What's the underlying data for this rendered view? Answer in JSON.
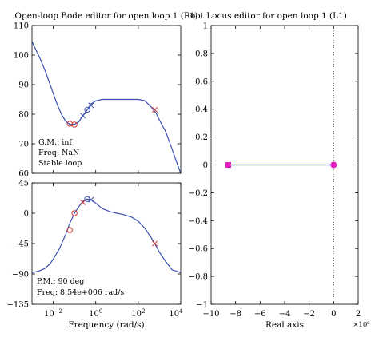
{
  "chart_data": [
    {
      "type": "line",
      "title": "Open-loop Bode editor for open loop 1 (L1)",
      "panel": "magnitude",
      "x_scale": "log",
      "xlim": [
        0.001,
        10000
      ],
      "ylim": [
        60,
        110
      ],
      "yticks": [
        60,
        70,
        80,
        90,
        100,
        110
      ],
      "ytick_labels": [
        "60",
        "70",
        "80",
        "90",
        "100",
        "110"
      ],
      "curve": {
        "color": "#3a4fb0",
        "x": [
          0.001,
          0.0016,
          0.0025,
          0.004,
          0.006,
          0.01,
          0.016,
          0.025,
          0.04,
          0.06,
          0.1,
          0.16,
          0.25,
          0.4,
          0.6,
          1,
          2,
          5,
          10,
          20,
          50,
          100,
          200,
          400,
          700,
          1000,
          2000,
          4000,
          7000,
          10000
        ],
        "y": [
          104.5,
          101.5,
          98.5,
          95.0,
          91.5,
          87.0,
          83.0,
          79.8,
          77.5,
          76.6,
          76.5,
          77.5,
          79.5,
          81.5,
          83.5,
          84.5,
          85.0,
          85.0,
          85.0,
          85.0,
          85.0,
          85.0,
          84.6,
          82.5,
          80.3,
          78.0,
          74.0,
          68.0,
          63.0,
          60.0
        ]
      },
      "markers": [
        {
          "shape": "o",
          "color": "#cc3333",
          "x": 0.06,
          "y": 76.8
        },
        {
          "shape": "o",
          "color": "#cc3333",
          "x": 0.1,
          "y": 76.5
        },
        {
          "shape": "x",
          "color": "#3a4fb0",
          "x": 0.25,
          "y": 79.5
        },
        {
          "shape": "o",
          "color": "#3a4fb0",
          "x": 0.4,
          "y": 81.5
        },
        {
          "shape": "x",
          "color": "#3a4fb0",
          "x": 0.6,
          "y": 83.0
        },
        {
          "shape": "x",
          "color": "#cc3333",
          "x": 600,
          "y": 81.5
        }
      ],
      "annotations": [
        "G.M.: inf",
        "Freq: NaN",
        "Stable loop"
      ]
    },
    {
      "type": "line",
      "panel": "phase",
      "xlabel": "Frequency (rad/s)",
      "x_scale": "log",
      "xlim": [
        0.001,
        10000
      ],
      "xticks": [
        0.01,
        1,
        100,
        10000
      ],
      "xtick_bases": [
        "10",
        "10",
        "10",
        "10"
      ],
      "xtick_exponents": [
        "−2",
        "0",
        "2",
        "4"
      ],
      "ylim": [
        -135,
        45
      ],
      "yticks": [
        -135,
        -90,
        -45,
        0,
        45
      ],
      "ytick_labels": [
        "−135",
        "−90",
        "−45",
        "0",
        "45"
      ],
      "curve": {
        "color": "#3a4fb0",
        "x": [
          0.001,
          0.002,
          0.004,
          0.007,
          0.01,
          0.02,
          0.04,
          0.06,
          0.1,
          0.16,
          0.25,
          0.4,
          0.6,
          1,
          2,
          5,
          10,
          20,
          50,
          100,
          200,
          400,
          600,
          1000,
          2000,
          4000,
          10000
        ],
        "y": [
          -88,
          -86,
          -82,
          -75,
          -68,
          -52,
          -30,
          -15,
          0,
          10,
          18,
          21,
          20,
          15,
          7,
          2,
          0,
          -2,
          -6,
          -12,
          -22,
          -36,
          -45,
          -58,
          -72,
          -84,
          -88
        ]
      },
      "markers": [
        {
          "shape": "o",
          "color": "#cc3333",
          "x": 0.06,
          "y": -25
        },
        {
          "shape": "o",
          "color": "#cc3333",
          "x": 0.1,
          "y": 0
        },
        {
          "shape": "x",
          "color": "#cc3333",
          "x": 0.25,
          "y": 16
        },
        {
          "shape": "o",
          "color": "#3a4fb0",
          "x": 0.4,
          "y": 21
        },
        {
          "shape": "x",
          "color": "#3a4fb0",
          "x": 0.6,
          "y": 20
        },
        {
          "shape": "x",
          "color": "#cc3333",
          "x": 600,
          "y": -45
        }
      ],
      "annotations": [
        "P.M.: 90 deg",
        "Freq: 8.54e+006 rad/s"
      ]
    },
    {
      "type": "scatter",
      "title": "Root Locus editor for open loop 1 (L1)",
      "xlabel": "Real axis",
      "x_exponent_label": "×10⁶",
      "xlim": [
        -10,
        2
      ],
      "ylim": [
        -1,
        1
      ],
      "xticks": [
        -10,
        -8,
        -6,
        -4,
        -2,
        0,
        2
      ],
      "xtick_labels": [
        "−10",
        "−8",
        "−6",
        "−4",
        "−2",
        "0",
        "2"
      ],
      "yticks": [
        -1,
        -0.8,
        -0.6,
        -0.4,
        -0.2,
        0,
        0.2,
        0.4,
        0.6,
        0.8,
        1
      ],
      "ytick_labels": [
        "−1",
        "−0.8",
        "−0.6",
        "−0.4",
        "−0.2",
        "0",
        "0.2",
        "0.4",
        "0.6",
        "0.8",
        "1"
      ],
      "locus": {
        "color": "#3a4fb0",
        "x": [
          -8.6,
          0
        ],
        "y": [
          0,
          0
        ]
      },
      "imag_axis": {
        "x": 0,
        "style": "dotted"
      },
      "points": [
        {
          "shape": "square",
          "color": "#e020c0",
          "x": -8.6,
          "y": 0
        },
        {
          "shape": "circle",
          "color": "#e020c0",
          "x": 0,
          "y": 0
        }
      ]
    }
  ]
}
